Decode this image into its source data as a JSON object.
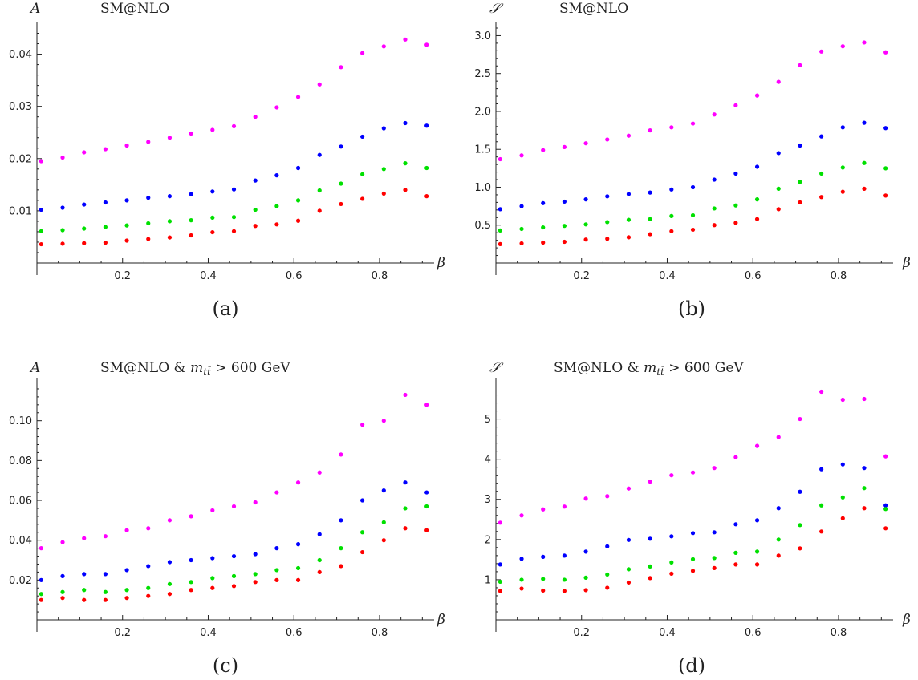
{
  "chart_data": [
    {
      "type": "scatter",
      "panel_label": "(a)",
      "title": "SM@NLO",
      "title_math": "",
      "title_tail": "",
      "ylabel": "A",
      "xlabel": "β",
      "xlim": [
        0,
        0.92
      ],
      "ylim": [
        0,
        0.045
      ],
      "xticks": [
        0.2,
        0.4,
        0.6,
        0.8
      ],
      "yticks": [
        0.01,
        0.02,
        0.03,
        0.04
      ],
      "ytick_labels": [
        "0.01",
        "0.02",
        "0.03",
        "0.04"
      ],
      "x": [
        0.01,
        0.06,
        0.11,
        0.16,
        0.21,
        0.26,
        0.31,
        0.36,
        0.41,
        0.46,
        0.51,
        0.56,
        0.61,
        0.66,
        0.71,
        0.76,
        0.81,
        0.86,
        0.91
      ],
      "series": [
        {
          "color": "#ff00ff",
          "values": [
            0.0195,
            0.0202,
            0.0212,
            0.0218,
            0.0225,
            0.0232,
            0.024,
            0.0248,
            0.0255,
            0.0262,
            0.028,
            0.0298,
            0.0318,
            0.0342,
            0.0375,
            0.0402,
            0.0415,
            0.0428,
            0.0418
          ]
        },
        {
          "color": "#0000ff",
          "values": [
            0.0102,
            0.0106,
            0.0112,
            0.0116,
            0.012,
            0.0125,
            0.0128,
            0.0132,
            0.0137,
            0.0141,
            0.0158,
            0.0168,
            0.0182,
            0.0207,
            0.0223,
            0.0242,
            0.0258,
            0.0268,
            0.0263
          ]
        },
        {
          "color": "#00e000",
          "values": [
            0.0061,
            0.0063,
            0.0066,
            0.0069,
            0.0072,
            0.0076,
            0.008,
            0.0082,
            0.0087,
            0.0088,
            0.0102,
            0.0109,
            0.012,
            0.0139,
            0.0152,
            0.017,
            0.018,
            0.0191,
            0.0182
          ]
        },
        {
          "color": "#ff0000",
          "values": [
            0.0036,
            0.0037,
            0.0038,
            0.0039,
            0.0043,
            0.0046,
            0.0049,
            0.0053,
            0.0059,
            0.0061,
            0.0071,
            0.0074,
            0.0081,
            0.01,
            0.0113,
            0.0123,
            0.0133,
            0.014,
            0.0128
          ]
        }
      ]
    },
    {
      "type": "scatter",
      "panel_label": "(b)",
      "title": "SM@NLO",
      "title_math": "",
      "title_tail": "",
      "ylabel": "𝒮",
      "xlabel": "β",
      "xlim": [
        0,
        0.92
      ],
      "ylim": [
        0,
        3.1
      ],
      "xticks": [
        0.2,
        0.4,
        0.6,
        0.8
      ],
      "yticks": [
        0.5,
        1.0,
        1.5,
        2.0,
        2.5,
        3.0
      ],
      "ytick_labels": [
        "0.5",
        "1.0",
        "1.5",
        "2.0",
        "2.5",
        "3.0"
      ],
      "x": [
        0.01,
        0.06,
        0.11,
        0.16,
        0.21,
        0.26,
        0.31,
        0.36,
        0.41,
        0.46,
        0.51,
        0.56,
        0.61,
        0.66,
        0.71,
        0.76,
        0.81,
        0.86,
        0.91
      ],
      "series": [
        {
          "color": "#ff00ff",
          "values": [
            1.37,
            1.42,
            1.49,
            1.53,
            1.58,
            1.63,
            1.68,
            1.75,
            1.79,
            1.84,
            1.96,
            2.08,
            2.21,
            2.39,
            2.61,
            2.79,
            2.86,
            2.91,
            2.78
          ]
        },
        {
          "color": "#0000ff",
          "values": [
            0.71,
            0.75,
            0.79,
            0.81,
            0.84,
            0.88,
            0.91,
            0.93,
            0.97,
            1.0,
            1.1,
            1.18,
            1.27,
            1.45,
            1.55,
            1.67,
            1.79,
            1.85,
            1.78
          ]
        },
        {
          "color": "#00e000",
          "values": [
            0.43,
            0.45,
            0.47,
            0.49,
            0.51,
            0.54,
            0.57,
            0.58,
            0.62,
            0.63,
            0.72,
            0.76,
            0.84,
            0.98,
            1.07,
            1.18,
            1.26,
            1.32,
            1.25
          ]
        },
        {
          "color": "#ff0000",
          "values": [
            0.25,
            0.26,
            0.27,
            0.28,
            0.31,
            0.32,
            0.34,
            0.38,
            0.42,
            0.44,
            0.5,
            0.53,
            0.58,
            0.71,
            0.8,
            0.87,
            0.94,
            0.98,
            0.89
          ]
        }
      ]
    },
    {
      "type": "scatter",
      "panel_label": "(c)",
      "title": "SM@NLO & ",
      "title_math": "m",
      "title_sub": "tt̄",
      "title_tail": " > 600 GeV",
      "ylabel": "A",
      "xlabel": "β",
      "xlim": [
        0,
        0.92
      ],
      "ylim": [
        0,
        0.118
      ],
      "xticks": [
        0.2,
        0.4,
        0.6,
        0.8
      ],
      "yticks": [
        0.02,
        0.04,
        0.06,
        0.08,
        0.1
      ],
      "ytick_labels": [
        "0.02",
        "0.04",
        "0.06",
        "0.08",
        "0.10"
      ],
      "x": [
        0.01,
        0.06,
        0.11,
        0.16,
        0.21,
        0.26,
        0.31,
        0.36,
        0.41,
        0.46,
        0.51,
        0.56,
        0.61,
        0.66,
        0.71,
        0.76,
        0.81,
        0.86,
        0.91
      ],
      "series": [
        {
          "color": "#ff00ff",
          "values": [
            0.036,
            0.039,
            0.041,
            0.042,
            0.045,
            0.046,
            0.05,
            0.052,
            0.055,
            0.057,
            0.059,
            0.064,
            0.069,
            0.074,
            0.083,
            0.098,
            0.1,
            0.113,
            0.108
          ]
        },
        {
          "color": "#0000ff",
          "values": [
            0.02,
            0.022,
            0.023,
            0.023,
            0.025,
            0.027,
            0.029,
            0.03,
            0.031,
            0.032,
            0.033,
            0.036,
            0.038,
            0.043,
            0.05,
            0.06,
            0.065,
            0.069,
            0.064
          ]
        },
        {
          "color": "#00e000",
          "values": [
            0.013,
            0.014,
            0.015,
            0.014,
            0.015,
            0.016,
            0.018,
            0.019,
            0.021,
            0.022,
            0.023,
            0.025,
            0.026,
            0.03,
            0.036,
            0.044,
            0.049,
            0.056,
            0.057
          ]
        },
        {
          "color": "#ff0000",
          "values": [
            0.01,
            0.011,
            0.01,
            0.01,
            0.011,
            0.012,
            0.013,
            0.015,
            0.016,
            0.017,
            0.019,
            0.02,
            0.02,
            0.024,
            0.027,
            0.034,
            0.04,
            0.046,
            0.045
          ]
        }
      ]
    },
    {
      "type": "scatter",
      "panel_label": "(d)",
      "title": "SM@NLO & ",
      "title_math": "m",
      "title_sub": "tt̄",
      "title_tail": " > 600 GeV",
      "ylabel": "𝒮",
      "xlabel": "β",
      "xlim": [
        0,
        0.92
      ],
      "ylim": [
        0,
        5.85
      ],
      "xticks": [
        0.2,
        0.4,
        0.6,
        0.8
      ],
      "yticks": [
        1,
        2,
        3,
        4,
        5
      ],
      "ytick_labels": [
        "1",
        "2",
        "3",
        "4",
        "5"
      ],
      "x": [
        0.01,
        0.06,
        0.11,
        0.16,
        0.21,
        0.26,
        0.31,
        0.36,
        0.41,
        0.46,
        0.51,
        0.56,
        0.61,
        0.66,
        0.71,
        0.76,
        0.81,
        0.86,
        0.91
      ],
      "series": [
        {
          "color": "#ff00ff",
          "values": [
            2.42,
            2.6,
            2.75,
            2.82,
            3.02,
            3.08,
            3.27,
            3.44,
            3.6,
            3.67,
            3.78,
            4.05,
            4.33,
            4.55,
            5.0,
            5.68,
            5.48,
            5.5,
            4.07
          ]
        },
        {
          "color": "#0000ff",
          "values": [
            1.38,
            1.52,
            1.57,
            1.6,
            1.7,
            1.83,
            1.99,
            2.02,
            2.08,
            2.16,
            2.18,
            2.38,
            2.48,
            2.78,
            3.19,
            3.75,
            3.87,
            3.78,
            2.85
          ]
        },
        {
          "color": "#00e000",
          "values": [
            0.95,
            1.0,
            1.02,
            1.0,
            1.05,
            1.13,
            1.26,
            1.33,
            1.43,
            1.51,
            1.54,
            1.67,
            1.7,
            2.0,
            2.36,
            2.85,
            3.05,
            3.28,
            2.76
          ]
        },
        {
          "color": "#ff0000",
          "values": [
            0.72,
            0.78,
            0.73,
            0.72,
            0.74,
            0.8,
            0.93,
            1.04,
            1.15,
            1.22,
            1.29,
            1.38,
            1.38,
            1.6,
            1.78,
            2.2,
            2.53,
            2.78,
            2.28
          ]
        }
      ]
    }
  ]
}
